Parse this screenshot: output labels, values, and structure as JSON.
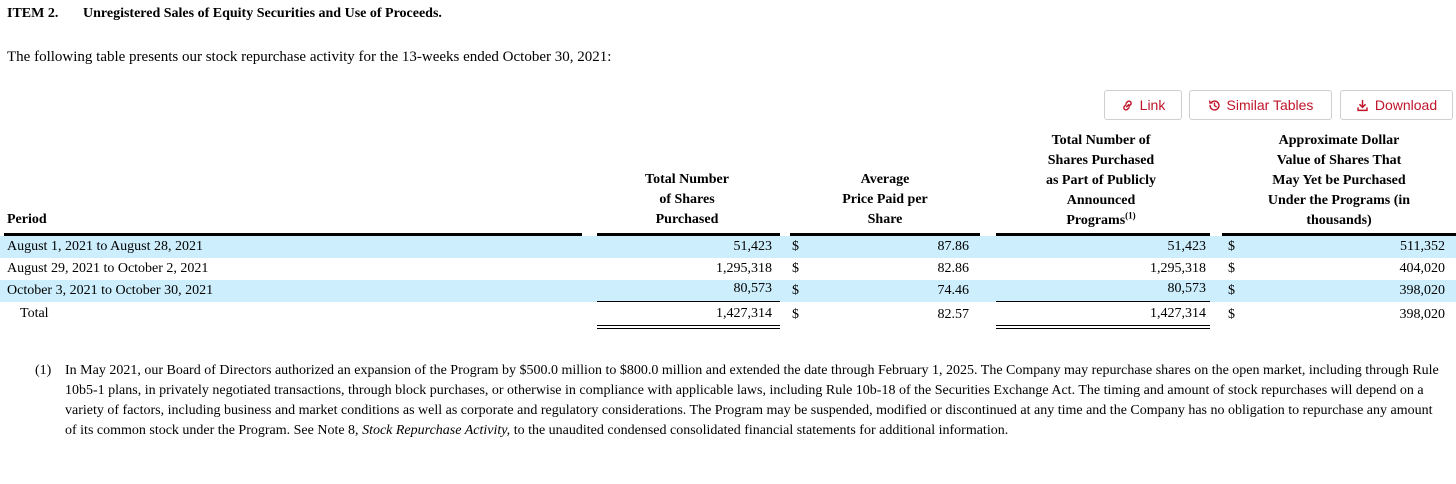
{
  "heading": {
    "item": "ITEM 2.",
    "title": "Unregistered Sales of Equity Securities and Use of Proceeds."
  },
  "intro": "The following table presents our stock repurchase activity for the 13-weeks ended October 30, 2021:",
  "toolbar": {
    "link": "Link",
    "similar": "Similar Tables",
    "download": "Download"
  },
  "columns": {
    "period": "Period",
    "shares_purchased": [
      "Total Number",
      "of Shares",
      "Purchased"
    ],
    "avg_price": [
      "Average",
      "Price Paid per",
      "Share"
    ],
    "public_programs": [
      "Total Number of",
      "Shares Purchased",
      "as Part of Publicly",
      "Announced",
      "Programs"
    ],
    "public_programs_sup": "(1)",
    "approx_value": [
      "Approximate Dollar",
      "Value of Shares That",
      "May Yet be Purchased",
      "Under the Programs (in",
      "thousands)"
    ]
  },
  "currency": "$",
  "rows": [
    {
      "period": "August 1, 2021 to August 28, 2021",
      "shares": "51,423",
      "price": "87.86",
      "program_shares": "51,423",
      "value": "511,352"
    },
    {
      "period": "August 29, 2021 to October 2, 2021",
      "shares": "1,295,318",
      "price": "82.86",
      "program_shares": "1,295,318",
      "value": "404,020"
    },
    {
      "period": "October 3, 2021 to October 30, 2021",
      "shares": "80,573",
      "price": "74.46",
      "program_shares": "80,573",
      "value": "398,020"
    }
  ],
  "total": {
    "period": "Total",
    "shares": "1,427,314",
    "price": "82.57",
    "program_shares": "1,427,314",
    "value": "398,020"
  },
  "footnote": {
    "marker": "(1)",
    "text_before": "In May 2021, our Board of Directors authorized an expansion of the Program by $500.0 million to $800.0 million and extended the date through February 1, 2025. The Company may repurchase shares on the open market, including through Rule 10b5-1 plans, in privately negotiated transactions, through block purchases, or otherwise in compliance with applicable laws, including Rule 10b-18 of the Securities Exchange Act. The timing and amount of stock repurchases will depend on a variety of factors, including business and market conditions as well as corporate and regulatory considerations. The Program may be suspended, modified or discontinued at any time and the Company has no obligation to repurchase any amount of its common stock under the Program. See Note 8, ",
    "italic": "Stock Repurchase Activity,",
    "text_after": " to the unaudited condensed consolidated financial statements for additional information."
  }
}
